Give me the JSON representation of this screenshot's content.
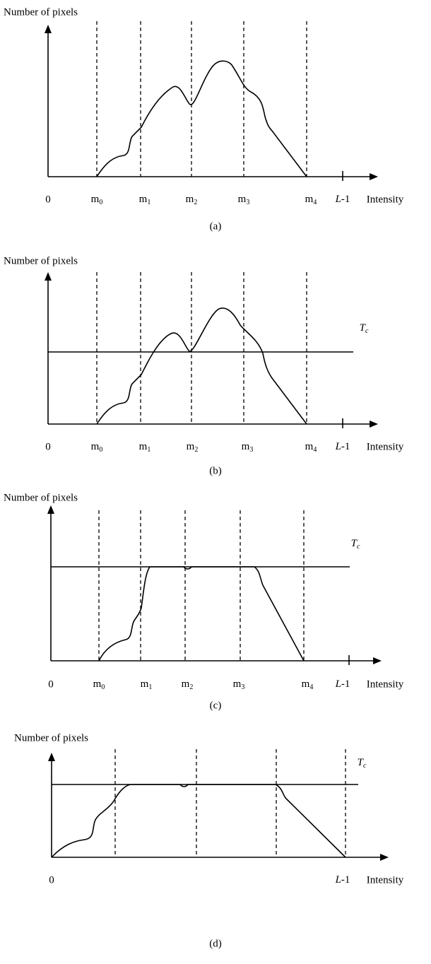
{
  "panels": [
    {
      "y_axis_label": "Number of pixels",
      "origin_label": "0",
      "markers": [
        {
          "base": "m",
          "sub": "0"
        },
        {
          "base": "m",
          "sub": "1"
        },
        {
          "base": "m",
          "sub": "2"
        },
        {
          "base": "m",
          "sub": "3"
        },
        {
          "base": "m",
          "sub": "4"
        }
      ],
      "end_label": {
        "italic": "L",
        "rest": "-1"
      },
      "x_axis_label": "Intensity",
      "caption": "(a)"
    },
    {
      "y_axis_label": "Number of pixels",
      "origin_label": "0",
      "markers": [
        {
          "base": "m",
          "sub": "0"
        },
        {
          "base": "m",
          "sub": "1"
        },
        {
          "base": "m",
          "sub": "2"
        },
        {
          "base": "m",
          "sub": "3"
        },
        {
          "base": "m",
          "sub": "4"
        }
      ],
      "end_label": {
        "italic": "L",
        "rest": "-1"
      },
      "x_axis_label": "Intensity",
      "threshold_label": {
        "base": "T",
        "sub": "c"
      },
      "caption": "(b)"
    },
    {
      "y_axis_label": "Number of pixels",
      "origin_label": "0",
      "markers": [
        {
          "base": "m",
          "sub": "0"
        },
        {
          "base": "m",
          "sub": "1"
        },
        {
          "base": "m",
          "sub": "2"
        },
        {
          "base": "m",
          "sub": "3"
        },
        {
          "base": "m",
          "sub": "4"
        }
      ],
      "end_label": {
        "italic": "L",
        "rest": "-1"
      },
      "x_axis_label": "Intensity",
      "threshold_label": {
        "base": "T",
        "sub": "c"
      },
      "caption": "(c)"
    },
    {
      "y_axis_label": "Number of pixels",
      "origin_label": "0",
      "end_label": {
        "italic": "L",
        "rest": "-1"
      },
      "x_axis_label": "Intensity",
      "threshold_label": {
        "base": "T",
        "sub": "c"
      },
      "caption": "(d)"
    }
  ]
}
